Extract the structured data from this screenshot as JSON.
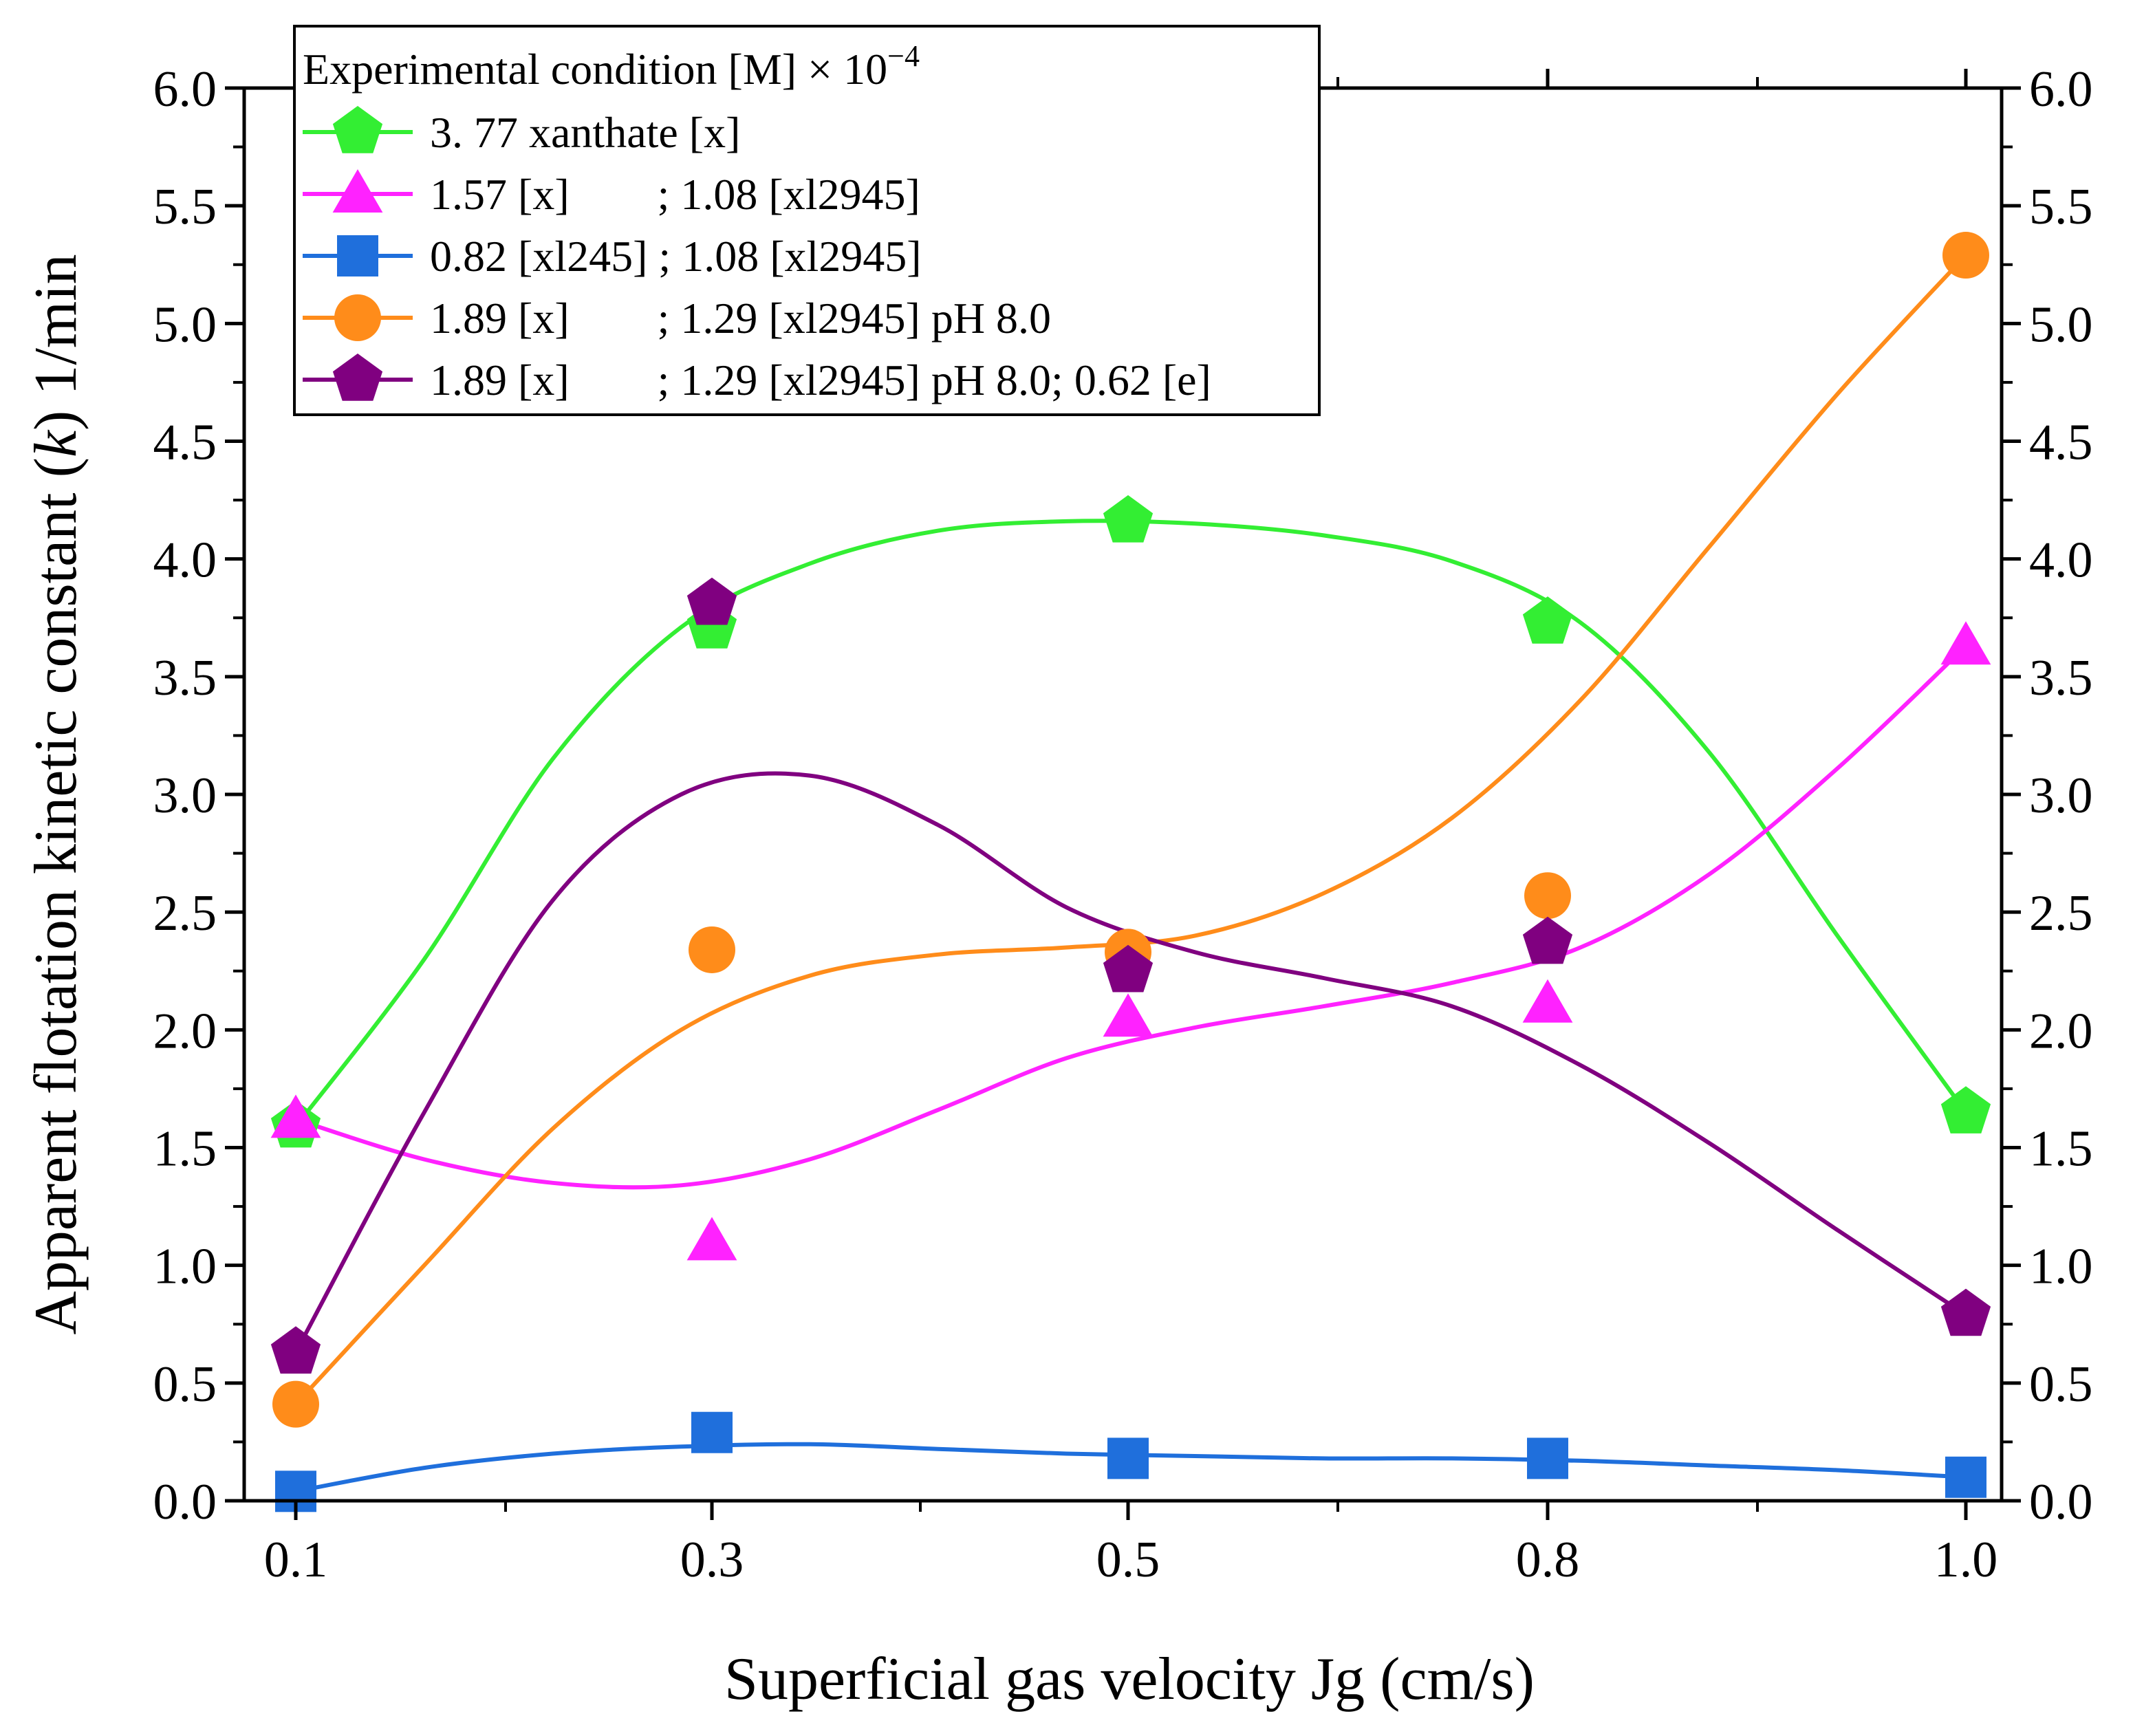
{
  "chart_data": {
    "type": "line",
    "title": "",
    "xlabel": "Superficial gas velocity Jg (cm/s)",
    "ylabel_parts": [
      "Apparent flotation kinetic constant (",
      "k",
      ") 1/min"
    ],
    "categories": [
      "0.1",
      "0.3",
      "0.5",
      "0.8",
      "1.0"
    ],
    "ylim": [
      0,
      6
    ],
    "y_ticks": [
      "0.0",
      "0.5",
      "1.0",
      "1.5",
      "2.0",
      "2.5",
      "3.0",
      "3.5",
      "4.0",
      "4.5",
      "5.0",
      "5.5",
      "6.0"
    ],
    "y_tick_values": [
      0,
      0.5,
      1,
      1.5,
      2,
      2.5,
      3,
      3.5,
      4,
      4.5,
      5,
      5.5,
      6
    ],
    "right_axis_mirror": true,
    "grid": false,
    "legend": {
      "placement": "top-left",
      "title": "Experimental condition [M] × 10",
      "title_exponent": "−4"
    },
    "series": [
      {
        "name": "3. 77 xanthate [x]",
        "color": "#33ee33",
        "marker": "pentagon",
        "values": [
          1.59,
          3.71,
          4.16,
          3.73,
          1.65
        ],
        "fit": [
          1.59,
          2.3,
          3.15,
          3.71,
          3.98,
          4.12,
          4.16,
          4.15,
          4.1,
          3.99,
          3.73,
          3.18,
          2.4,
          1.65
        ]
      },
      {
        "name": "1.57 [x]        ; 1.08 [xl2945]",
        "color": "#ff22ff",
        "marker": "triangle",
        "values": [
          1.62,
          1.1,
          2.05,
          2.11,
          3.63
        ],
        "fit": [
          1.62,
          1.45,
          1.35,
          1.34,
          1.45,
          1.66,
          1.88,
          2.01,
          2.1,
          2.2,
          2.35,
          2.66,
          3.11,
          3.63
        ]
      },
      {
        "name": "0.82 [xl245] ; 1.08 [xl2945]",
        "color": "#1f6fdc",
        "marker": "square",
        "values": [
          0.04,
          0.29,
          0.18,
          0.18,
          0.1
        ],
        "fit": [
          0.04,
          0.14,
          0.2,
          0.23,
          0.24,
          0.22,
          0.2,
          0.19,
          0.18,
          0.18,
          0.17,
          0.15,
          0.13,
          0.1
        ]
      },
      {
        "name": "1.89 [x]        ; 1.29 [xl2945] pH 8.0",
        "color": "#ff8c1a",
        "marker": "circle",
        "values": [
          0.41,
          2.34,
          2.33,
          2.57,
          5.29
        ],
        "fit": [
          0.41,
          1.0,
          1.58,
          2.0,
          2.23,
          2.32,
          2.35,
          2.4,
          2.58,
          2.9,
          3.4,
          4.05,
          4.7,
          5.29
        ]
      },
      {
        "name": "1.89 [x]        ; 1.29 [xl2945] pH 8.0; 0.62 [e]",
        "color": "#800080",
        "marker": "pentagon",
        "values": [
          0.63,
          3.81,
          2.25,
          2.37,
          0.79
        ],
        "fit": [
          0.63,
          1.65,
          2.55,
          3.0,
          3.08,
          2.87,
          2.52,
          2.33,
          2.22,
          2.1,
          1.85,
          1.52,
          1.15,
          0.79
        ]
      }
    ]
  }
}
